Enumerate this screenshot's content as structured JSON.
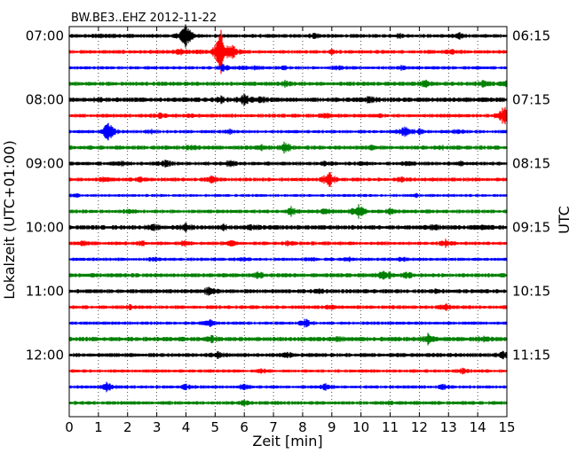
{
  "chart_data": {
    "type": "line",
    "title": "BW.BE3..EHZ 2012-11-22",
    "xlabel": "Zeit  [min]",
    "ylabel_left": "Lokalzeit (UTC+01:00)",
    "ylabel_right": "UTC",
    "xlim": [
      0,
      15
    ],
    "x_ticks": [
      "0",
      "1",
      "2",
      "3",
      "4",
      "5",
      "6",
      "7",
      "8",
      "9",
      "10",
      "11",
      "12",
      "13",
      "14",
      "15"
    ],
    "grid": "vertical dotted every minute",
    "trace_interval_min": 15,
    "trace_colors": [
      "#000000",
      "#ff0000",
      "#0000ff",
      "#008000"
    ],
    "left_tick_labels": [
      {
        "trace": 0,
        "label": "07:00"
      },
      {
        "trace": 4,
        "label": "08:00"
      },
      {
        "trace": 8,
        "label": "09:00"
      },
      {
        "trace": 12,
        "label": "10:00"
      },
      {
        "trace": 16,
        "label": "11:00"
      },
      {
        "trace": 20,
        "label": "12:00"
      }
    ],
    "right_tick_labels": [
      {
        "trace": 0,
        "label": "06:15"
      },
      {
        "trace": 4,
        "label": "07:15"
      },
      {
        "trace": 8,
        "label": "08:15"
      },
      {
        "trace": 12,
        "label": "09:15"
      },
      {
        "trace": 16,
        "label": "10:15"
      },
      {
        "trace": 20,
        "label": "11:15"
      }
    ],
    "series": [
      {
        "trace": 0,
        "color": "#000000",
        "noise": 0.9,
        "events": [
          [
            1.0,
            0.25
          ],
          [
            1.5,
            0.2
          ],
          [
            2.0,
            0.2
          ],
          [
            3.9,
            0.5
          ],
          [
            4.0,
            1.6
          ],
          [
            4.1,
            0.6
          ],
          [
            8.4,
            0.4
          ],
          [
            11.3,
            0.3
          ],
          [
            13.4,
            0.4
          ]
        ]
      },
      {
        "trace": 1,
        "color": "#ff0000",
        "noise": 0.9,
        "events": [
          [
            3.8,
            0.4
          ],
          [
            4.4,
            0.3
          ],
          [
            5.15,
            1.4
          ],
          [
            5.2,
            3.0
          ],
          [
            5.6,
            1.2
          ],
          [
            9.0,
            0.3
          ],
          [
            13.1,
            0.3
          ]
        ]
      },
      {
        "trace": 2,
        "color": "#0000ff",
        "noise": 0.8,
        "events": [
          [
            5.3,
            0.6
          ],
          [
            5.9,
            0.3
          ],
          [
            6.4,
            0.25
          ],
          [
            7.4,
            0.25
          ],
          [
            9.2,
            0.3
          ],
          [
            11.4,
            0.3
          ]
        ]
      },
      {
        "trace": 3,
        "color": "#008000",
        "noise": 1.0,
        "events": [
          [
            7.4,
            0.4
          ],
          [
            12.2,
            0.7
          ],
          [
            14.2,
            0.6
          ],
          [
            15.0,
            0.4
          ]
        ]
      },
      {
        "trace": 4,
        "color": "#000000",
        "noise": 1.1,
        "events": [
          [
            1.0,
            0.3
          ],
          [
            5.2,
            0.4
          ],
          [
            6.0,
            0.9
          ],
          [
            6.6,
            0.4
          ],
          [
            10.3,
            0.5
          ]
        ]
      },
      {
        "trace": 5,
        "color": "#ff0000",
        "noise": 0.9,
        "events": [
          [
            3.1,
            0.3
          ],
          [
            4.1,
            0.2
          ],
          [
            8.8,
            0.3
          ],
          [
            10.6,
            0.2
          ],
          [
            14.9,
            2.0
          ]
        ]
      },
      {
        "trace": 6,
        "color": "#0000ff",
        "noise": 0.8,
        "events": [
          [
            1.35,
            2.3
          ],
          [
            2.8,
            0.3
          ],
          [
            5.5,
            0.3
          ],
          [
            11.5,
            1.1
          ],
          [
            12.0,
            0.4
          ],
          [
            13.3,
            0.3
          ]
        ]
      },
      {
        "trace": 7,
        "color": "#008000",
        "noise": 1.0,
        "events": [
          [
            4.2,
            0.3
          ],
          [
            6.6,
            0.3
          ],
          [
            7.4,
            1.0
          ],
          [
            10.4,
            0.3
          ],
          [
            12.7,
            0.3
          ]
        ]
      },
      {
        "trace": 8,
        "color": "#000000",
        "noise": 0.9,
        "events": [
          [
            1.8,
            0.4
          ],
          [
            3.3,
            0.6
          ],
          [
            5.5,
            0.5
          ],
          [
            8.8,
            0.3
          ],
          [
            10.0,
            0.3
          ],
          [
            11.6,
            0.3
          ],
          [
            13.4,
            0.3
          ]
        ]
      },
      {
        "trace": 9,
        "color": "#ff0000",
        "noise": 0.9,
        "events": [
          [
            1.2,
            0.4
          ],
          [
            2.4,
            0.4
          ],
          [
            4.9,
            0.6
          ],
          [
            8.9,
            1.6
          ],
          [
            11.4,
            0.4
          ]
        ]
      },
      {
        "trace": 10,
        "color": "#0000ff",
        "noise": 0.7,
        "events": [
          [
            0.2,
            0.3
          ],
          [
            11.9,
            0.2
          ]
        ]
      },
      {
        "trace": 11,
        "color": "#008000",
        "noise": 0.9,
        "events": [
          [
            2.1,
            0.3
          ],
          [
            7.6,
            0.8
          ],
          [
            8.8,
            0.4
          ],
          [
            9.9,
            1.4
          ],
          [
            11.0,
            0.4
          ]
        ]
      },
      {
        "trace": 12,
        "color": "#000000",
        "noise": 1.1,
        "events": [
          [
            2.9,
            0.3
          ],
          [
            4.0,
            0.6
          ],
          [
            5.3,
            0.3
          ],
          [
            6.3,
            0.3
          ],
          [
            12.5,
            0.3
          ],
          [
            14.2,
            0.3
          ]
        ]
      },
      {
        "trace": 13,
        "color": "#ff0000",
        "noise": 0.9,
        "events": [
          [
            0.5,
            0.3
          ],
          [
            2.5,
            0.3
          ],
          [
            4.0,
            0.6
          ],
          [
            5.5,
            0.5
          ],
          [
            7.5,
            0.3
          ],
          [
            12.9,
            0.5
          ]
        ]
      },
      {
        "trace": 14,
        "color": "#0000ff",
        "noise": 0.8,
        "events": [
          [
            2.9,
            0.3
          ],
          [
            5.9,
            0.3
          ],
          [
            8.3,
            0.3
          ],
          [
            9.6,
            0.3
          ],
          [
            11.4,
            0.3
          ]
        ]
      },
      {
        "trace": 15,
        "color": "#008000",
        "noise": 1.0,
        "events": [
          [
            6.5,
            0.5
          ],
          [
            10.8,
            1.0
          ],
          [
            11.6,
            0.4
          ]
        ]
      },
      {
        "trace": 16,
        "color": "#000000",
        "noise": 1.0,
        "events": [
          [
            4.8,
            0.7
          ],
          [
            8.6,
            0.3
          ],
          [
            12.6,
            0.3
          ]
        ]
      },
      {
        "trace": 17,
        "color": "#ff0000",
        "noise": 0.9,
        "events": [
          [
            2.1,
            0.3
          ],
          [
            9.0,
            0.4
          ],
          [
            12.9,
            0.5
          ]
        ]
      },
      {
        "trace": 18,
        "color": "#0000ff",
        "noise": 0.8,
        "events": [
          [
            4.8,
            0.6
          ],
          [
            8.1,
            0.7
          ]
        ]
      },
      {
        "trace": 19,
        "color": "#008000",
        "noise": 1.1,
        "events": [
          [
            4.9,
            0.4
          ],
          [
            9.2,
            0.3
          ],
          [
            12.3,
            0.8
          ],
          [
            14.2,
            0.3
          ]
        ]
      },
      {
        "trace": 20,
        "color": "#000000",
        "noise": 1.0,
        "events": [
          [
            5.1,
            0.5
          ],
          [
            7.5,
            0.3
          ],
          [
            14.9,
            0.5
          ]
        ]
      },
      {
        "trace": 21,
        "color": "#ff0000",
        "noise": 0.8,
        "events": [
          [
            6.6,
            0.3
          ],
          [
            13.5,
            0.4
          ]
        ]
      },
      {
        "trace": 22,
        "color": "#0000ff",
        "noise": 0.8,
        "events": [
          [
            1.3,
            0.8
          ],
          [
            4.0,
            0.4
          ],
          [
            6.0,
            0.5
          ],
          [
            8.8,
            0.6
          ],
          [
            12.8,
            0.4
          ]
        ]
      },
      {
        "trace": 23,
        "color": "#008000",
        "noise": 0.9,
        "events": [
          [
            6.0,
            0.3
          ],
          [
            11.0,
            0.2
          ]
        ]
      }
    ]
  }
}
